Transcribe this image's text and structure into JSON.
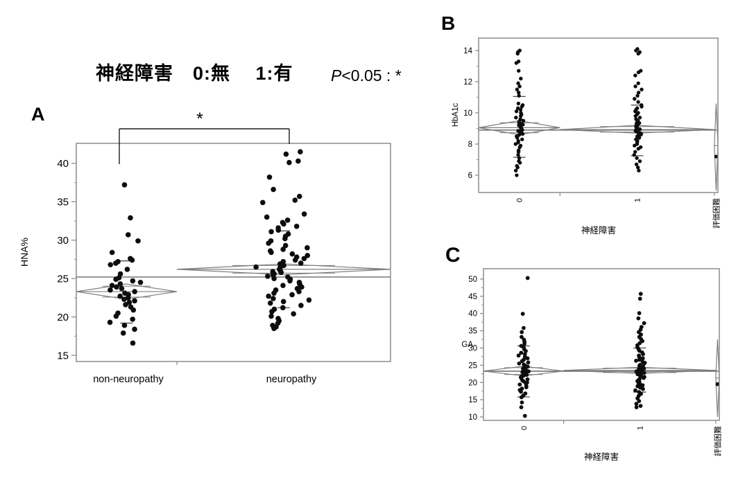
{
  "title": {
    "main": "神経障害　0:無　 1:有",
    "pvalue_p": "P",
    "pvalue_rest": "<0.05 : *"
  },
  "panel_labels": {
    "a": "A",
    "b": "B",
    "c": "C"
  },
  "colors": {
    "dot": "#0d0d0d",
    "diamond": "#7d7d7d",
    "frame": "#8c8c8c",
    "grand_mean": "#777777",
    "sd_mark": "#4a4a4a",
    "bracket": "#1a1a1a",
    "text": "#000000",
    "background": "#ffffff"
  },
  "chart_data": [
    {
      "panel": "A",
      "type": "scatter",
      "ylabel": "HNA%",
      "xlabel": "",
      "ylim": [
        14.2,
        42.6
      ],
      "yticks": [
        15,
        20,
        25,
        30,
        35,
        40
      ],
      "grand_mean": 25.2,
      "significance": {
        "bracket": true,
        "label": "*",
        "between": [
          "non-neuropathy",
          "neuropathy"
        ]
      },
      "groups": [
        {
          "label": "non-neuropathy",
          "slot": [
            0.0,
            0.32
          ],
          "mean": 23.3,
          "ci": [
            22.3,
            24.3
          ],
          "sd_marks": [
            19.2,
            27.3
          ],
          "values": [
            37.2,
            32.9,
            30.7,
            29.9,
            28.4,
            27.6,
            27.4,
            27.2,
            27.0,
            26.8,
            26.2,
            25.6,
            25.1,
            24.9,
            24.7,
            24.5,
            24.3,
            24.1,
            23.9,
            23.7,
            23.5,
            23.3,
            23.1,
            22.9,
            22.7,
            22.5,
            22.3,
            22.1,
            21.9,
            21.6,
            21.3,
            20.9,
            20.5,
            20.1,
            19.7,
            19.3,
            18.9,
            18.4,
            17.9,
            16.6
          ]
        },
        {
          "label": "neuropathy",
          "slot": [
            0.32,
            1.0
          ],
          "mean": 26.2,
          "ci": [
            25.5,
            26.9
          ],
          "sd_marks": [
            21.2,
            31.2
          ],
          "values": [
            41.5,
            41.2,
            40.3,
            40.1,
            38.2,
            36.6,
            35.7,
            35.2,
            34.9,
            33.4,
            33.0,
            32.6,
            32.3,
            32.1,
            31.8,
            31.6,
            31.3,
            31.1,
            30.8,
            30.5,
            30.2,
            29.9,
            29.6,
            29.3,
            29.0,
            28.8,
            28.6,
            28.4,
            28.2,
            28.0,
            27.8,
            27.6,
            27.4,
            27.2,
            27.0,
            26.9,
            26.7,
            26.5,
            26.4,
            26.2,
            26.1,
            25.9,
            25.8,
            25.6,
            25.5,
            25.3,
            25.2,
            25.0,
            24.9,
            24.7,
            24.5,
            24.3,
            24.1,
            23.9,
            23.7,
            23.5,
            23.3,
            23.1,
            22.9,
            22.7,
            22.4,
            22.2,
            22.0,
            21.8,
            21.5,
            21.2,
            21.0,
            20.7,
            20.4,
            20.1,
            19.8,
            19.5,
            19.2,
            18.9,
            18.7,
            18.5
          ]
        }
      ]
    },
    {
      "panel": "B",
      "type": "scatter",
      "ylabel": "HbA1c",
      "xlabel": "神経障害",
      "ylim": [
        4.89,
        14.8
      ],
      "yticks": [
        6,
        8,
        10,
        12,
        14
      ],
      "grand_mean": 8.9,
      "groups": [
        {
          "label": "0",
          "slot": [
            0.0,
            0.34
          ],
          "mean": 9.05,
          "ci": [
            8.6,
            9.5
          ],
          "sd_marks": [
            7.15,
            11.05
          ],
          "values": [
            14.0,
            13.9,
            13.8,
            13.3,
            13.2,
            12.7,
            12.2,
            11.9,
            11.7,
            11.5,
            11.3,
            11.1,
            10.6,
            10.5,
            10.4,
            10.3,
            10.2,
            10.1,
            10.0,
            9.9,
            9.8,
            9.7,
            9.6,
            9.5,
            9.45,
            9.4,
            9.35,
            9.3,
            9.25,
            9.2,
            9.15,
            9.1,
            9.05,
            9.0,
            8.95,
            8.9,
            8.85,
            8.8,
            8.75,
            8.7,
            8.65,
            8.6,
            8.55,
            8.5,
            8.4,
            8.3,
            8.2,
            8.1,
            8.0,
            7.9,
            7.8,
            7.6,
            7.5,
            7.3,
            7.1,
            6.9,
            6.8,
            6.6,
            6.5,
            6.3,
            6.0
          ]
        },
        {
          "label": "1",
          "slot": [
            0.34,
            0.985
          ],
          "mean": 8.93,
          "ci": [
            8.7,
            9.2
          ],
          "sd_marks": [
            7.25,
            10.5
          ],
          "values": [
            14.1,
            14.0,
            13.9,
            13.8,
            12.7,
            12.6,
            12.4,
            11.9,
            11.7,
            11.5,
            11.3,
            11.1,
            10.9,
            10.7,
            10.5,
            10.4,
            10.3,
            10.2,
            10.1,
            10.0,
            9.9,
            9.8,
            9.7,
            9.6,
            9.5,
            9.4,
            9.35,
            9.3,
            9.25,
            9.2,
            9.15,
            9.1,
            9.05,
            9.0,
            8.95,
            8.9,
            8.85,
            8.8,
            8.75,
            8.7,
            8.65,
            8.6,
            8.55,
            8.5,
            8.45,
            8.4,
            8.3,
            8.2,
            8.1,
            8.0,
            7.9,
            7.8,
            7.7,
            7.5,
            7.3,
            7.1,
            6.9,
            6.7,
            6.5,
            6.3
          ]
        },
        {
          "label": "評価困難",
          "slot": [
            0.985,
            1.0
          ],
          "mean": 7.9,
          "ci": [
            5.0,
            10.6
          ],
          "sd_marks": [],
          "values": [
            7.2
          ]
        }
      ]
    },
    {
      "panel": "C",
      "type": "scatter",
      "ylabel": "GA",
      "xlabel": "神経障害",
      "ylim": [
        9.0,
        53.0
      ],
      "yticks": [
        10,
        15,
        20,
        25,
        30,
        35,
        40,
        45,
        50
      ],
      "grand_mean": 23.25,
      "groups": [
        {
          "label": "0",
          "slot": [
            0.0,
            0.34
          ],
          "mean": 23.3,
          "ci": [
            21.9,
            24.7
          ],
          "sd_marks": [
            15.8,
            30.6
          ],
          "values": [
            50.3,
            39.9,
            35.8,
            34.6,
            33.2,
            32.4,
            31.8,
            31.2,
            30.6,
            30.1,
            29.6,
            29.1,
            28.6,
            28.2,
            27.8,
            27.4,
            27.0,
            26.6,
            26.2,
            25.8,
            25.5,
            25.2,
            24.9,
            24.6,
            24.3,
            24.0,
            23.8,
            23.6,
            23.4,
            23.2,
            23.0,
            22.8,
            22.6,
            22.4,
            22.2,
            22.0,
            21.8,
            21.5,
            21.2,
            20.9,
            20.6,
            20.3,
            20.0,
            19.7,
            19.4,
            19.0,
            18.6,
            18.2,
            17.8,
            17.3,
            16.8,
            16.2,
            15.7,
            14.2,
            12.8,
            10.3
          ]
        },
        {
          "label": "1",
          "slot": [
            0.34,
            0.985
          ],
          "mean": 23.5,
          "ci": [
            22.6,
            24.4
          ],
          "sd_marks": [
            17.2,
            30.0
          ],
          "values": [
            45.7,
            44.3,
            40.1,
            38.6,
            37.2,
            36.1,
            35.3,
            34.6,
            33.9,
            33.2,
            32.6,
            32.0,
            31.4,
            30.8,
            30.2,
            29.7,
            29.2,
            28.7,
            28.2,
            27.8,
            27.4,
            27.0,
            26.6,
            26.3,
            26.0,
            25.7,
            25.4,
            25.1,
            24.8,
            24.5,
            24.2,
            24.0,
            23.8,
            23.6,
            23.4,
            23.2,
            23.0,
            22.8,
            22.6,
            22.4,
            22.2,
            22.0,
            21.8,
            21.6,
            21.3,
            21.0,
            20.7,
            20.4,
            20.1,
            19.8,
            19.5,
            19.2,
            18.9,
            18.5,
            18.1,
            17.7,
            17.2,
            16.7,
            16.1,
            15.4,
            14.6,
            13.8,
            13.2,
            12.8
          ]
        },
        {
          "label": "評価困難",
          "slot": [
            0.985,
            1.0
          ],
          "mean": 21.3,
          "ci": [
            10.0,
            32.5
          ],
          "sd_marks": [],
          "values": [
            19.5
          ]
        }
      ]
    }
  ]
}
